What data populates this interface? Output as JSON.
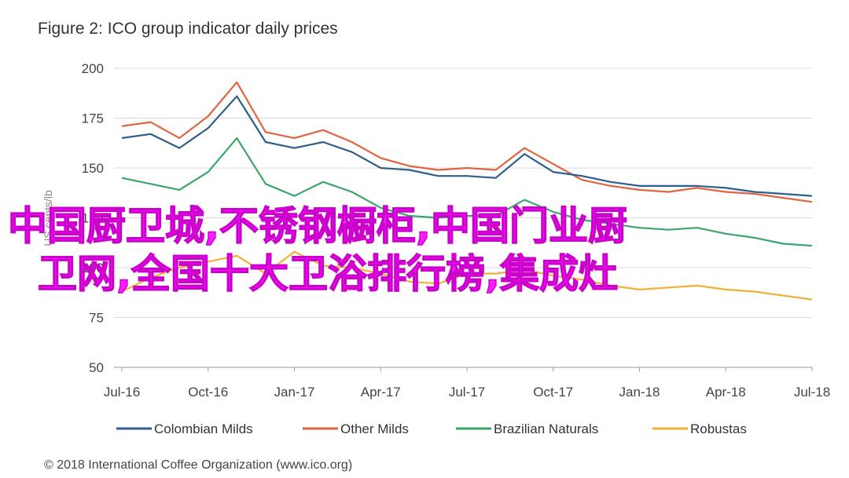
{
  "chart_data": {
    "type": "line",
    "title": "Figure 2: ICO group indicator daily prices",
    "ylabel": "US cents/lb",
    "xlabel": "",
    "ylim": [
      50,
      200
    ],
    "yticks": [
      "50",
      "75",
      "100",
      "125",
      "150",
      "175",
      "200"
    ],
    "xticks": [
      "Jul-16",
      "Oct-16",
      "Jan-17",
      "Apr-17",
      "Jul-17",
      "Oct-17",
      "Jan-18",
      "Apr-18",
      "Jul-18"
    ],
    "grid": "horizontal",
    "legend_position": "bottom",
    "x": [
      "Jul-16",
      "Aug-16",
      "Sep-16",
      "Oct-16",
      "Nov-16",
      "Dec-16",
      "Jan-17",
      "Feb-17",
      "Mar-17",
      "Apr-17",
      "May-17",
      "Jun-17",
      "Jul-17",
      "Aug-17",
      "Sep-17",
      "Oct-17",
      "Nov-17",
      "Dec-17",
      "Jan-18",
      "Feb-18",
      "Mar-18",
      "Apr-18",
      "May-18",
      "Jun-18",
      "Jul-18"
    ],
    "series": [
      {
        "name": "Colombian Milds",
        "color": "#2e5e8c",
        "values": [
          165,
          167,
          160,
          170,
          186,
          163,
          160,
          163,
          158,
          150,
          149,
          146,
          146,
          145,
          157,
          148,
          146,
          143,
          141,
          141,
          141,
          140,
          138,
          137,
          136
        ]
      },
      {
        "name": "Other Milds",
        "color": "#e06440",
        "values": [
          171,
          173,
          165,
          176,
          193,
          168,
          165,
          169,
          163,
          155,
          151,
          149,
          150,
          149,
          160,
          152,
          144,
          141,
          139,
          138,
          140,
          138,
          137,
          135,
          133
        ]
      },
      {
        "name": "Brazilian Naturals",
        "color": "#3aa66a",
        "values": [
          145,
          142,
          139,
          148,
          165,
          142,
          136,
          143,
          138,
          130,
          126,
          125,
          126,
          126,
          134,
          128,
          124,
          122,
          120,
          119,
          120,
          117,
          115,
          112,
          111
        ]
      },
      {
        "name": "Robustas",
        "color": "#f2b035",
        "values": [
          88,
          95,
          100,
          103,
          106,
          97,
          108,
          101,
          100,
          97,
          93,
          92,
          97,
          97,
          99,
          96,
          94,
          91,
          89,
          90,
          91,
          89,
          88,
          86,
          84
        ]
      }
    ]
  },
  "legend": [
    {
      "label": "Colombian Milds",
      "color": "#2e5e8c"
    },
    {
      "label": "Other Milds",
      "color": "#e06440"
    },
    {
      "label": "Brazilian Naturals",
      "color": "#3aa66a"
    },
    {
      "label": "Robustas",
      "color": "#f2b035"
    }
  ],
  "footer": "© 2018 International Coffee Organization (www.ico.org)",
  "overlay": {
    "line1": "中国厨卫城,不锈钢橱柜,中国门业厨",
    "line2": "卫网,全国十大卫浴排行榜,集成灶"
  },
  "colors": {
    "grid": "#d9d9d9",
    "axis": "#999999",
    "overlay_text": "#ff1aff"
  }
}
